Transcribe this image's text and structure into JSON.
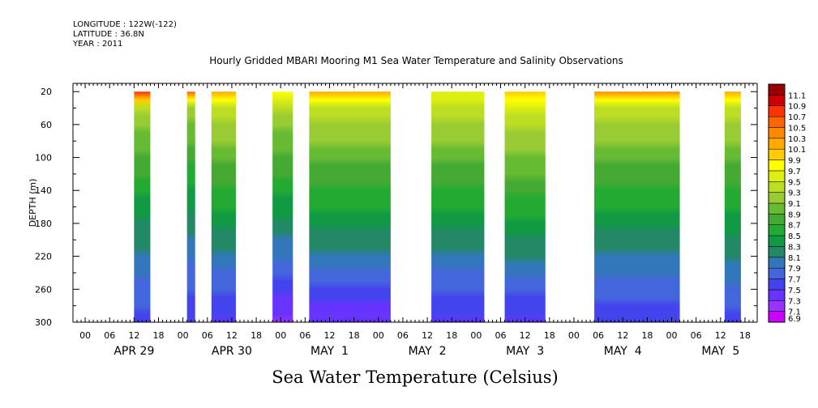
{
  "header": {
    "longitude": "LONGITUDE : 122W(-122)",
    "latitude": "LATITUDE : 36.8N",
    "year": "YEAR : 2011",
    "title": "Hourly Gridded MBARI Mooring M1 Sea Water Temperature and Salinity Observations"
  },
  "footer": {
    "variable_title": "Sea Water Temperature (Celsius)"
  },
  "chart_data": {
    "type": "heatmap",
    "title": "Hourly Gridded MBARI Mooring M1 Sea Water Temperature and Salinity Observations",
    "xlabel": "",
    "ylabel": "DEPTH (m)",
    "y_reversed": true,
    "ylim": [
      10,
      300
    ],
    "y_ticks": [
      20,
      60,
      100,
      140,
      180,
      220,
      260,
      300
    ],
    "x_range_hours": [
      -3,
      165
    ],
    "x_hour_ticks": [
      "00",
      "06",
      "12",
      "18",
      "00",
      "06",
      "12",
      "18",
      "00",
      "06",
      "12",
      "18",
      "00",
      "06",
      "12",
      "18",
      "00",
      "06",
      "12",
      "18",
      "00",
      "06",
      "12",
      "18",
      "00",
      "06",
      "12",
      "18"
    ],
    "x_day_labels": [
      "APR 29",
      "APR 30",
      "MAY  1",
      "MAY  2",
      "MAY  3",
      "MAY  4",
      "MAY  5"
    ],
    "value_label": "Sea Water Temperature (Celsius)",
    "colorbar_levels": [
      "6.9",
      "7.1",
      "7.3",
      "7.5",
      "7.7",
      "7.9",
      "8.1",
      "8.3",
      "8.5",
      "8.7",
      "8.9",
      "9.1",
      "9.3",
      "9.5",
      "9.7",
      "9.9",
      "10.1",
      "10.3",
      "10.5",
      "10.7",
      "10.9",
      "11.1"
    ],
    "colorbar_colors": [
      "#cc00ff",
      "#9933ff",
      "#6633ff",
      "#4444ee",
      "#4466dd",
      "#3377bb",
      "#228866",
      "#119944",
      "#22aa33",
      "#44aa33",
      "#66bb33",
      "#99cc33",
      "#bbdd22",
      "#ddee11",
      "#ffff00",
      "#ffcc00",
      "#ffaa00",
      "#ff8800",
      "#ff6600",
      "#ff3300",
      "#cc0000",
      "#990000"
    ],
    "data_blocks": [
      {
        "start_hour": 12,
        "end_hour": 16,
        "surface_temp": 10.6,
        "mid_temp": 8.3,
        "deep_temp": 7.6
      },
      {
        "start_hour": 25,
        "end_hour": 27,
        "surface_temp": 10.4,
        "mid_temp": 8.2,
        "deep_temp": 7.5
      },
      {
        "start_hour": 31,
        "end_hour": 37,
        "surface_temp": 10.0,
        "mid_temp": 8.4,
        "deep_temp": 7.4
      },
      {
        "start_hour": 46,
        "end_hour": 51,
        "surface_temp": 9.7,
        "mid_temp": 8.3,
        "deep_temp": 7.2
      },
      {
        "start_hour": 55,
        "end_hour": 75,
        "surface_temp": 10.0,
        "mid_temp": 8.4,
        "deep_temp": 7.3
      },
      {
        "start_hour": 85,
        "end_hour": 98,
        "surface_temp": 9.5,
        "mid_temp": 8.4,
        "deep_temp": 7.4
      },
      {
        "start_hour": 103,
        "end_hour": 113,
        "surface_temp": 9.8,
        "mid_temp": 8.5,
        "deep_temp": 7.4
      },
      {
        "start_hour": 125,
        "end_hour": 146,
        "surface_temp": 10.2,
        "mid_temp": 8.4,
        "deep_temp": 7.5
      },
      {
        "start_hour": 157,
        "end_hour": 161,
        "surface_temp": 10.0,
        "mid_temp": 8.4,
        "deep_temp": 7.6
      }
    ]
  }
}
